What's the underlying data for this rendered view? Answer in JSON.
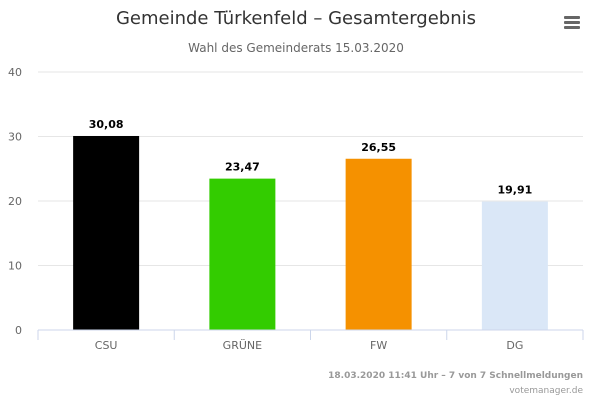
{
  "chart_data": {
    "type": "bar",
    "title": "Gemeinde Türkenfeld – Gesamtergebnis",
    "subtitle": "Wahl des Gemeinderats 15.03.2020",
    "categories": [
      "CSU",
      "GRÜNE",
      "FW",
      "DG"
    ],
    "values": [
      30.08,
      23.47,
      26.55,
      19.91
    ],
    "data_labels": [
      "30,08",
      "23,47",
      "26,55",
      "19,91"
    ],
    "bar_colors": [
      "#000000",
      "#33cc00",
      "#f59100",
      "#dae7f7"
    ],
    "ylim": [
      0,
      40
    ],
    "yticks": [
      0,
      10,
      20,
      30,
      40
    ],
    "grid": true,
    "legend": "none"
  },
  "credits": {
    "line1": "18.03.2020 11:41 Uhr – 7 von 7 Schnellmeldungen",
    "line2": "votemanager.de"
  },
  "menu_icon": "hamburger-menu-icon",
  "colors": {
    "title": "#333333",
    "subtitle": "#666666",
    "axis_text": "#666666",
    "gridline": "#e6e6e6",
    "axis_line": "#ccd6eb",
    "credits": "#999999"
  }
}
